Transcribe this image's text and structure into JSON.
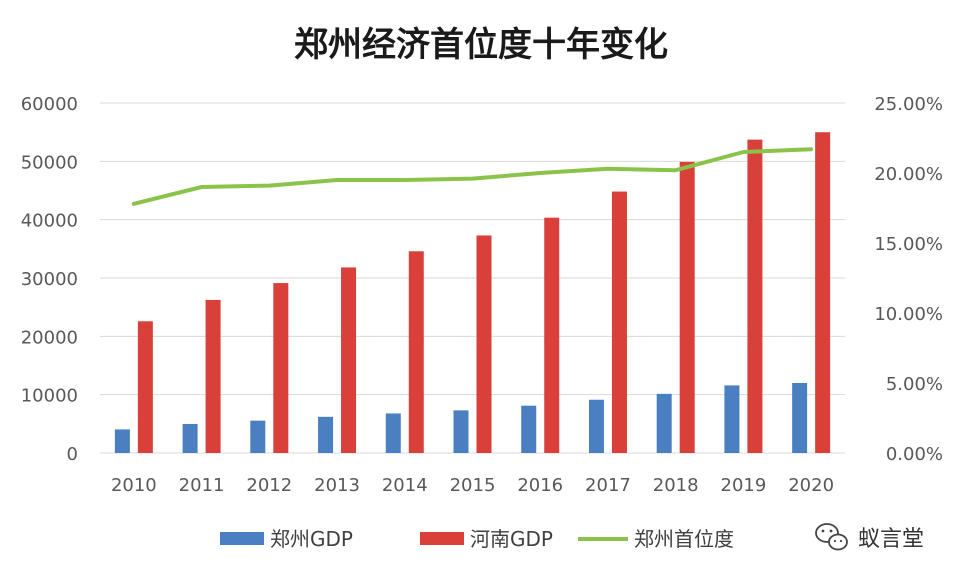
{
  "chart_data": {
    "type": "bar",
    "title": "郑州经济首位度十年变化",
    "categories": [
      "2010",
      "2011",
      "2012",
      "2013",
      "2014",
      "2015",
      "2016",
      "2017",
      "2018",
      "2019",
      "2020"
    ],
    "series": [
      {
        "name": "郑州GDP",
        "type": "bar",
        "axis": "left",
        "color": "#4a7fc1",
        "values": [
          4040,
          4980,
          5550,
          6200,
          6780,
          7310,
          8110,
          9130,
          10140,
          11590,
          12000
        ]
      },
      {
        "name": "河南GDP",
        "type": "bar",
        "axis": "left",
        "color": "#d9403a",
        "values": [
          22580,
          26240,
          29130,
          31810,
          34580,
          37290,
          40340,
          44820,
          49900,
          53720,
          54990
        ]
      },
      {
        "name": "郑州首位度",
        "type": "line",
        "axis": "right",
        "color": "#8bc34a",
        "values": [
          0.178,
          0.19,
          0.191,
          0.195,
          0.195,
          0.196,
          0.2,
          0.203,
          0.202,
          0.215,
          0.217
        ]
      }
    ],
    "yleft": {
      "lim": [
        0,
        60000
      ],
      "ticks": [
        "0",
        "10000",
        "20000",
        "30000",
        "40000",
        "50000",
        "60000"
      ]
    },
    "yright": {
      "lim": [
        0,
        0.25
      ],
      "ticks": [
        "0.00%",
        "5.00%",
        "10.00%",
        "15.00%",
        "20.00%",
        "25.00%"
      ]
    },
    "grid": true,
    "legend": "bottom"
  },
  "watermark": {
    "text": "蚁言堂",
    "icon": "wechat-icon"
  }
}
